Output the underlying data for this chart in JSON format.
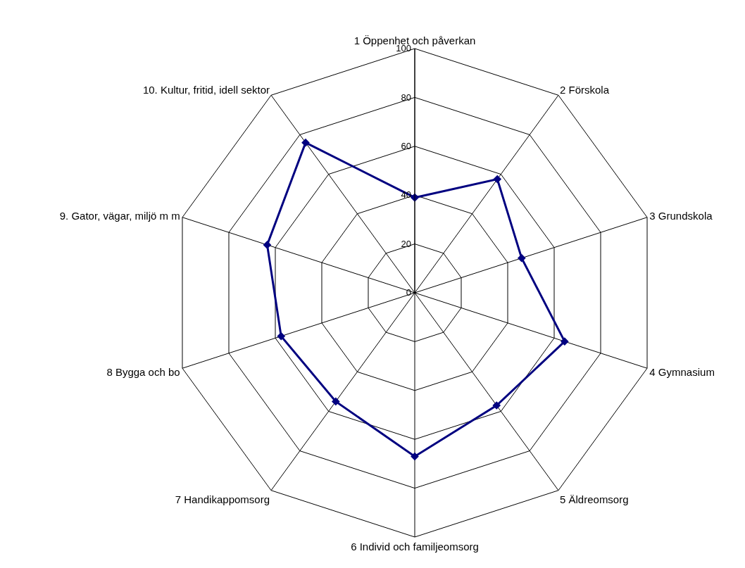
{
  "chart_data": {
    "type": "radar",
    "categories": [
      "1 Öppenhet och påverkan",
      "2 Förskola",
      "3 Grundskola",
      "4 Gymnasium",
      "5 Äldreomsorg",
      "6 Individ och familjeomsorg",
      "7 Handikappomsorg",
      "8 Bygga och bo",
      "9. Gator, vägar, miljö m m",
      "10. Kultur, fritid, idell sektor"
    ],
    "series": [
      {
        "color": "#000080",
        "values": [
          39,
          57.5,
          46,
          64.5,
          57,
          67,
          55,
          57.5,
          63.5,
          76
        ]
      }
    ],
    "ylim": [
      0,
      100
    ],
    "yticks": [
      0,
      20,
      40,
      60,
      80,
      100
    ],
    "grid": true,
    "marker": "diamond",
    "line_style": "solid"
  }
}
